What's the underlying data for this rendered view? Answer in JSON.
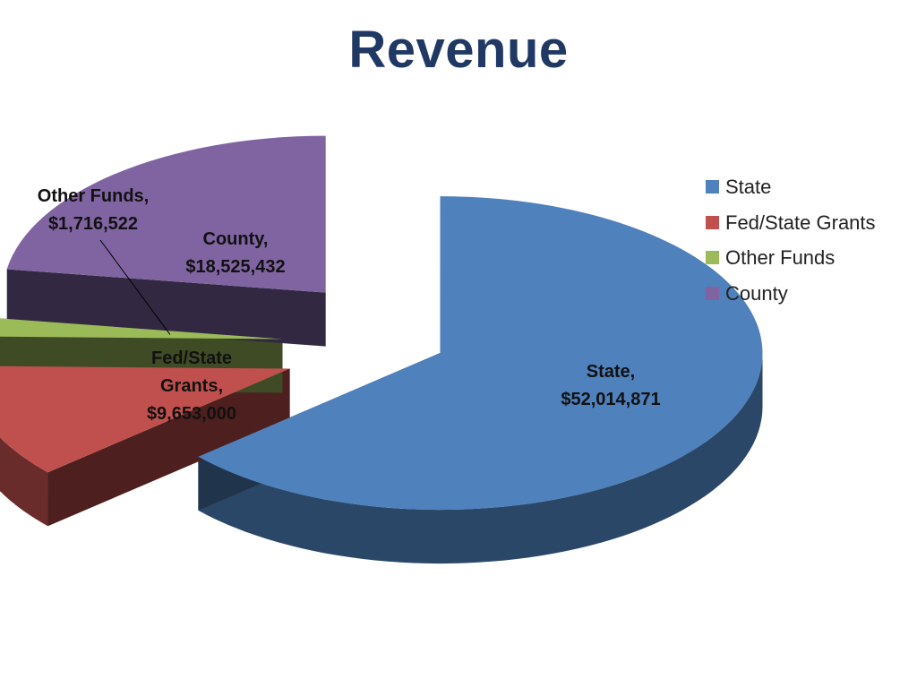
{
  "chart_data": {
    "type": "pie",
    "title": "Revenue",
    "categories": [
      "State",
      "Fed/State Grants",
      "Other Funds",
      "County"
    ],
    "values": [
      52014871,
      9653000,
      1716522,
      18525432
    ],
    "value_labels": [
      "$52,014,871",
      "$9,653,000",
      "$1,716,522",
      "$18,525,432"
    ],
    "colors": [
      "#4F81BD",
      "#C0504D",
      "#9BBB59",
      "#8064A2"
    ],
    "exploded": true,
    "perspective": "3d",
    "legend": "right",
    "legend_entries": [
      "State",
      "Fed/State Grants",
      "Other Funds",
      "County"
    ]
  }
}
